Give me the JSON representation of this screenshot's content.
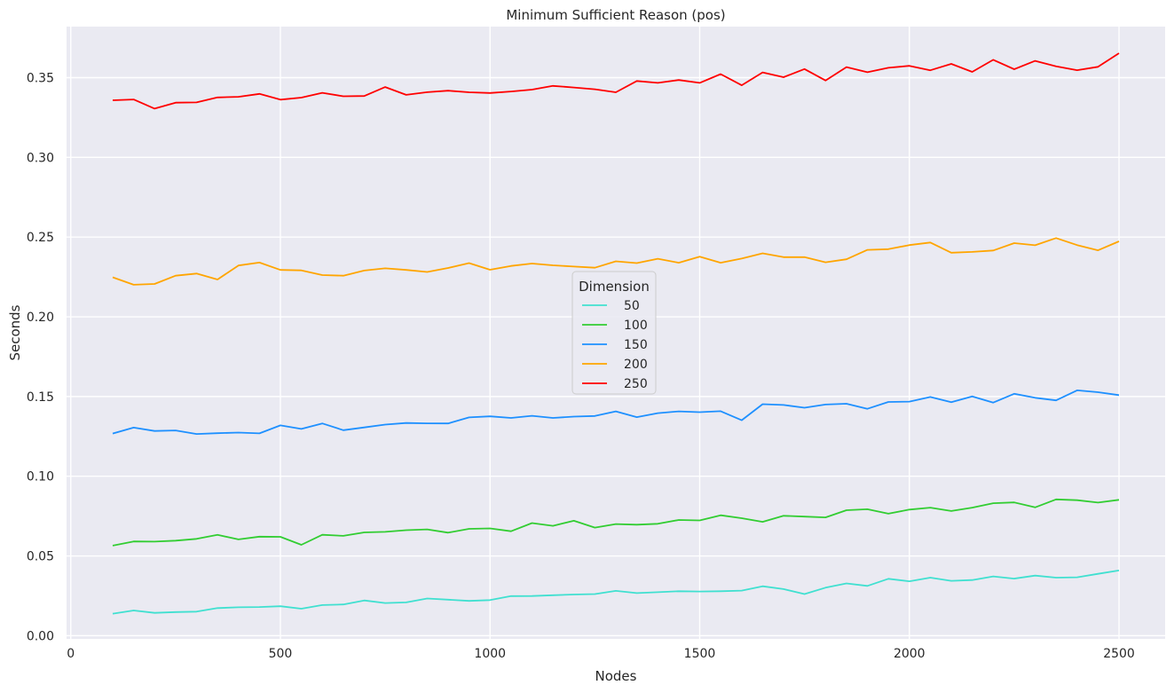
{
  "chart_data": {
    "type": "line",
    "title": "Minimum Sufficient Reason (pos)",
    "xlabel": "Nodes",
    "ylabel": "Seconds",
    "xlim": [
      -10,
      2610
    ],
    "ylim": [
      -0.002,
      0.382
    ],
    "xticks": [
      0,
      500,
      1000,
      1500,
      2000,
      2500
    ],
    "xtick_labels": [
      "0",
      "500",
      "1000",
      "1500",
      "2000",
      "2500"
    ],
    "yticks": [
      0.0,
      0.05,
      0.1,
      0.15,
      0.2,
      0.25,
      0.3,
      0.35
    ],
    "ytick_labels": [
      "0.00",
      "0.05",
      "0.10",
      "0.15",
      "0.20",
      "0.25",
      "0.30",
      "0.35"
    ],
    "grid": true,
    "legend": {
      "title": "Dimension",
      "placement": "center"
    },
    "x": [
      100,
      150,
      200,
      250,
      300,
      350,
      400,
      450,
      500,
      550,
      600,
      650,
      700,
      750,
      800,
      850,
      900,
      950,
      1000,
      1050,
      1100,
      1150,
      1200,
      1250,
      1300,
      1350,
      1400,
      1450,
      1500,
      1550,
      1600,
      1650,
      1700,
      1750,
      1800,
      1850,
      1900,
      1950,
      2000,
      2050,
      2100,
      2150,
      2200,
      2250,
      2300,
      2350,
      2400,
      2450,
      2500
    ],
    "series": [
      {
        "name": "50",
        "color": "#40e0d0",
        "values": [
          0.0138,
          0.0158,
          0.0143,
          0.0148,
          0.0151,
          0.0173,
          0.0178,
          0.018,
          0.0185,
          0.0169,
          0.0192,
          0.0196,
          0.0221,
          0.0205,
          0.0209,
          0.0233,
          0.0226,
          0.0218,
          0.0223,
          0.0248,
          0.0249,
          0.0254,
          0.0258,
          0.0261,
          0.0281,
          0.0267,
          0.0273,
          0.0279,
          0.0277,
          0.0279,
          0.0283,
          0.031,
          0.0292,
          0.0261,
          0.0301,
          0.0328,
          0.0312,
          0.0357,
          0.0341,
          0.0364,
          0.0344,
          0.0349,
          0.0372,
          0.0358,
          0.0377,
          0.0364,
          0.0366,
          0.0388,
          0.0409
        ]
      },
      {
        "name": "100",
        "color": "#32cd32",
        "values": [
          0.0565,
          0.0591,
          0.059,
          0.0596,
          0.0607,
          0.0632,
          0.0604,
          0.0621,
          0.062,
          0.057,
          0.0633,
          0.0626,
          0.0648,
          0.0651,
          0.0662,
          0.0667,
          0.0646,
          0.067,
          0.0673,
          0.0655,
          0.0706,
          0.0689,
          0.0721,
          0.0678,
          0.07,
          0.0696,
          0.0702,
          0.0726,
          0.0723,
          0.0755,
          0.0737,
          0.0714,
          0.0752,
          0.0747,
          0.0742,
          0.0787,
          0.0793,
          0.0765,
          0.0791,
          0.0803,
          0.0782,
          0.0803,
          0.0831,
          0.0836,
          0.0805,
          0.0855,
          0.085,
          0.0835,
          0.0852
        ]
      },
      {
        "name": "150",
        "color": "#1e90ff",
        "values": [
          0.1268,
          0.1305,
          0.1284,
          0.1287,
          0.1265,
          0.127,
          0.1274,
          0.1269,
          0.1319,
          0.1297,
          0.1331,
          0.1289,
          0.1306,
          0.1324,
          0.1334,
          0.1332,
          0.1331,
          0.1369,
          0.1376,
          0.1366,
          0.1379,
          0.1366,
          0.1374,
          0.1378,
          0.1407,
          0.1371,
          0.1396,
          0.1407,
          0.1402,
          0.1408,
          0.1351,
          0.1452,
          0.1447,
          0.143,
          0.145,
          0.1455,
          0.1423,
          0.1466,
          0.1468,
          0.1497,
          0.1464,
          0.1501,
          0.1462,
          0.1517,
          0.1492,
          0.1476,
          0.1539,
          0.1527,
          0.1509
        ]
      },
      {
        "name": "200",
        "color": "#ffa500",
        "values": [
          0.2248,
          0.2201,
          0.2206,
          0.2258,
          0.2271,
          0.2234,
          0.2322,
          0.234,
          0.2294,
          0.2291,
          0.2262,
          0.2258,
          0.229,
          0.2304,
          0.2294,
          0.2281,
          0.2306,
          0.2337,
          0.2295,
          0.2319,
          0.2334,
          0.2323,
          0.2315,
          0.2308,
          0.2348,
          0.2337,
          0.2364,
          0.2339,
          0.2377,
          0.2339,
          0.2365,
          0.2398,
          0.2374,
          0.2374,
          0.2342,
          0.2361,
          0.242,
          0.2424,
          0.245,
          0.2466,
          0.2402,
          0.2407,
          0.2416,
          0.2462,
          0.2449,
          0.2494,
          0.245,
          0.2417,
          0.2473
        ]
      },
      {
        "name": "250",
        "color": "#ff0000",
        "values": [
          0.3358,
          0.3363,
          0.3306,
          0.3343,
          0.3345,
          0.3376,
          0.338,
          0.3398,
          0.3362,
          0.3375,
          0.3405,
          0.3383,
          0.3385,
          0.3441,
          0.3392,
          0.3409,
          0.3418,
          0.3408,
          0.3404,
          0.3413,
          0.3425,
          0.3448,
          0.3438,
          0.3427,
          0.3408,
          0.3479,
          0.3467,
          0.3485,
          0.3467,
          0.3522,
          0.3452,
          0.3533,
          0.3503,
          0.3554,
          0.3482,
          0.3566,
          0.3534,
          0.3562,
          0.3574,
          0.3546,
          0.3586,
          0.3536,
          0.3612,
          0.3553,
          0.3605,
          0.3571,
          0.3547,
          0.3568,
          0.3653
        ]
      }
    ]
  }
}
